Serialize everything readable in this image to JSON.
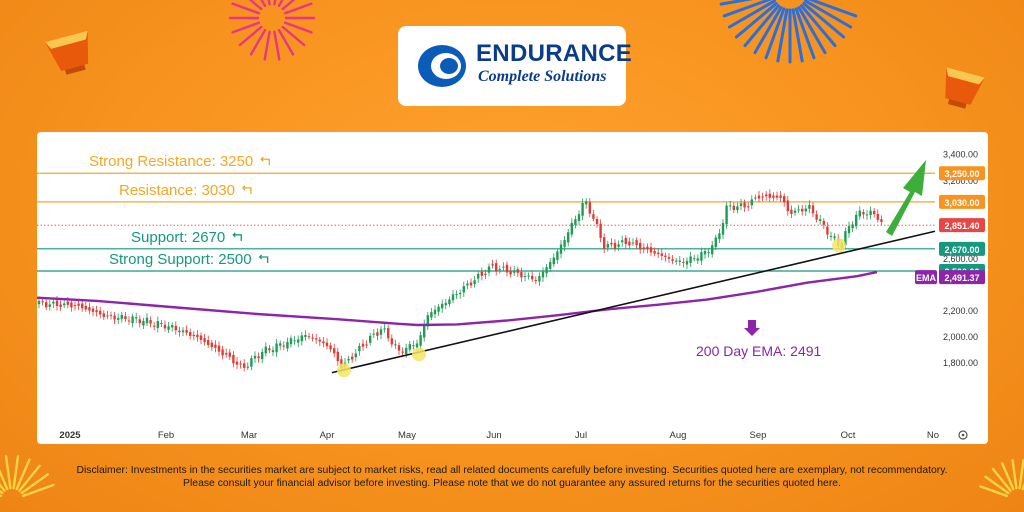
{
  "brand": {
    "name": "ENDURANCE",
    "tagline": "Complete Solutions"
  },
  "disclaimer": "Disclaimer: Investments in the securities market are subject to market risks, read all related documents carefully before investing. Securities quoted here are exemplary, not recommendatory. Please consult your financial advisor before investing. Please note that we do not guarantee any assured returns for the securities quoted here.",
  "chart_data": {
    "type": "candlestick",
    "x_labels": [
      "2025",
      "Feb",
      "Mar",
      "Apr",
      "May",
      "Jun",
      "Jul",
      "Aug",
      "Sep",
      "Oct",
      "No"
    ],
    "y_ticks": [
      "3,400.00",
      "3,200.00",
      "2,600.00",
      "2,200.00",
      "2,000.00",
      "1,800.00"
    ],
    "ylim": [
      1700,
      3500
    ],
    "levels": [
      {
        "label": "Strong Resistance: 3250",
        "value": 3250,
        "tag": "3,250.00",
        "color": "#F5A623",
        "tag_color": "#F7931E"
      },
      {
        "label": "Resistance: 3030",
        "value": 3030,
        "tag": "3,030.00",
        "color": "#F5A623",
        "tag_color": "#F7931E"
      },
      {
        "label": "Support: 2670",
        "value": 2670,
        "tag": "2,670.00",
        "color": "#14997F",
        "tag_color": "#14997F"
      },
      {
        "label": "Strong Support: 2500",
        "value": 2500,
        "tag": "2,500.00",
        "color": "#14997F",
        "tag_color": "#14997F"
      }
    ],
    "last_price": {
      "value": 2851.4,
      "tag": "2,851.40",
      "color": "#E84545"
    },
    "ema": {
      "name": "EMA",
      "label": "200 Day EMA: 2491",
      "value_tag": "2,491.37",
      "value": 2491.37,
      "color": "#8E24AA"
    },
    "trend_color": "#111111",
    "up_color": "#1F9D55",
    "down_color": "#E53935"
  }
}
